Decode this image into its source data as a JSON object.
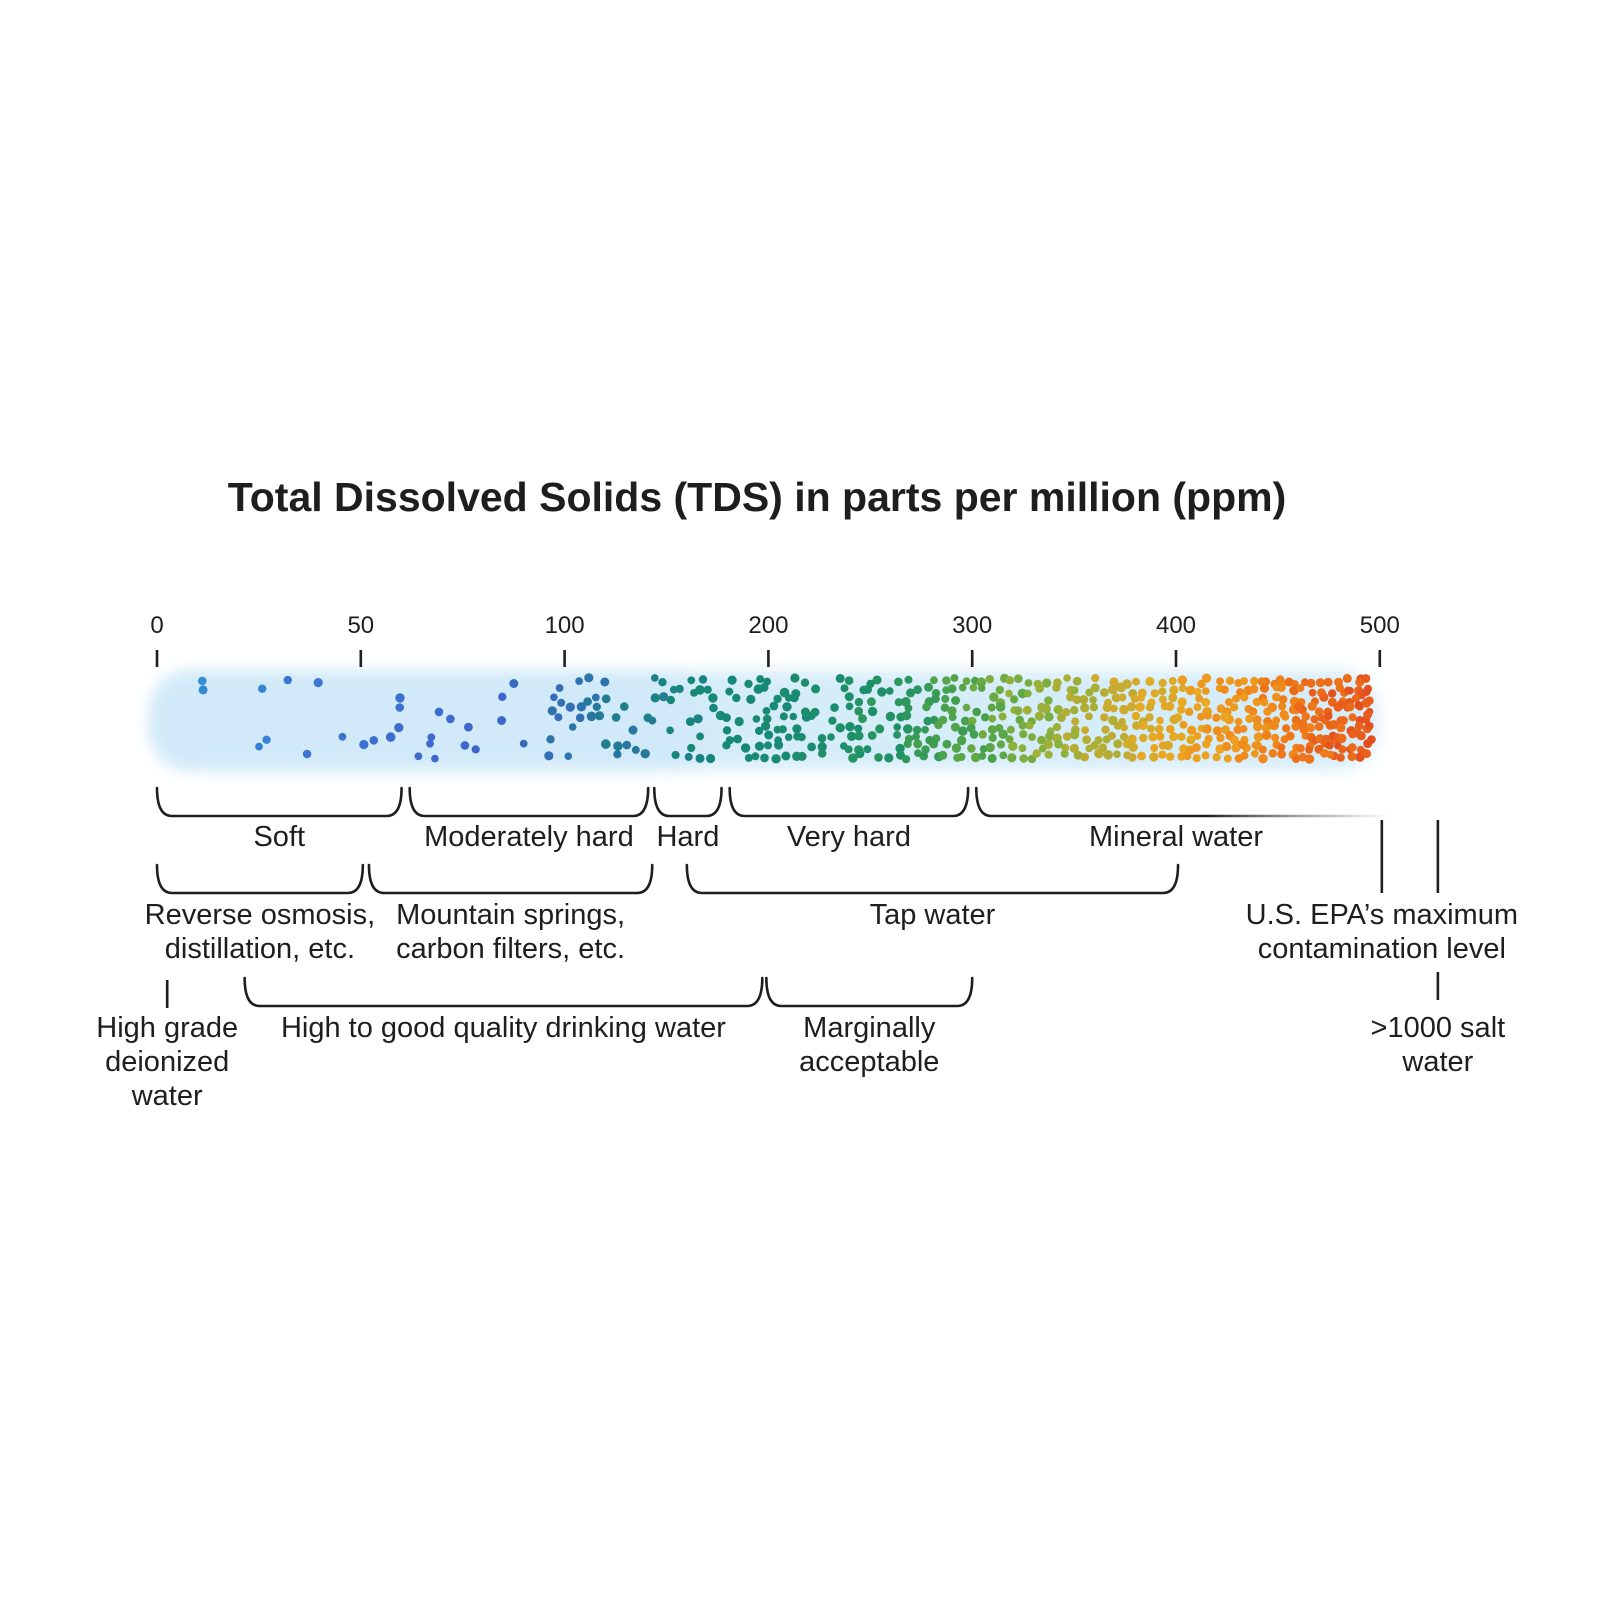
{
  "title": "Total Dissolved Solids (TDS) in parts per million (ppm)",
  "axis": {
    "tick_labels": [
      "0",
      "50",
      "100",
      "200",
      "300",
      "400",
      "500"
    ]
  },
  "band": {
    "glow_color": "#d5ecf9",
    "glow_color_left": "#cfe8f8",
    "line_color": "#1e1e1e",
    "dot_color_stops": [
      {
        "t": 0.0,
        "color": "#2f98d9"
      },
      {
        "t": 0.12,
        "color": "#3a77d2"
      },
      {
        "t": 0.28,
        "color": "#3f65cd"
      },
      {
        "t": 0.44,
        "color": "#16867b"
      },
      {
        "t": 0.58,
        "color": "#1d9068"
      },
      {
        "t": 0.66,
        "color": "#4aa24b"
      },
      {
        "t": 0.72,
        "color": "#8bb13b"
      },
      {
        "t": 0.79,
        "color": "#c9ab30"
      },
      {
        "t": 0.84,
        "color": "#e9a922"
      },
      {
        "t": 0.9,
        "color": "#f08c1b"
      },
      {
        "t": 0.95,
        "color": "#ed6d18"
      },
      {
        "t": 1.0,
        "color": "#e34e1f"
      }
    ]
  },
  "hardness_row": [
    {
      "label": "Soft",
      "from": 0,
      "to": 60
    },
    {
      "label": "Moderately hard",
      "from": 62,
      "to": 141
    },
    {
      "label": "Hard",
      "from": 144,
      "to": 177
    },
    {
      "label": "Very hard",
      "from": 181,
      "to": 298
    },
    {
      "label": "Mineral water",
      "from": 302,
      "to": 505,
      "fade": true,
      "label_center": 400
    }
  ],
  "source_row": [
    {
      "type": "bracket",
      "label_lines": [
        "Reverse osmosis,",
        "distillation, etc."
      ],
      "from": 0,
      "to": 50.5
    },
    {
      "type": "bracket",
      "label_lines": [
        "Mountain springs,",
        "carbon filters, etc."
      ],
      "from": 52,
      "to": 143
    },
    {
      "type": "bracket",
      "label_lines": [
        "Tap water"
      ],
      "from": 160,
      "to": 401
    }
  ],
  "epa_marker": {
    "label_lines": [
      "U.S. EPA’s maximum",
      "contamination level"
    ],
    "lines_at": [
      501,
      528.5
    ]
  },
  "quality_row": [
    {
      "type": "marker",
      "label_lines": [
        "High grade",
        "deionized",
        "water"
      ],
      "at": 2.5
    },
    {
      "type": "bracket",
      "label_lines": [
        "High to good quality drinking water"
      ],
      "from": 21.5,
      "to": 197
    },
    {
      "type": "bracket",
      "label_lines": [
        "Marginally",
        "acceptable"
      ],
      "from": 199,
      "to": 300
    },
    {
      "type": "marker",
      "label_lines": [
        ">1000 salt",
        "water"
      ],
      "at": 528.5
    }
  ]
}
